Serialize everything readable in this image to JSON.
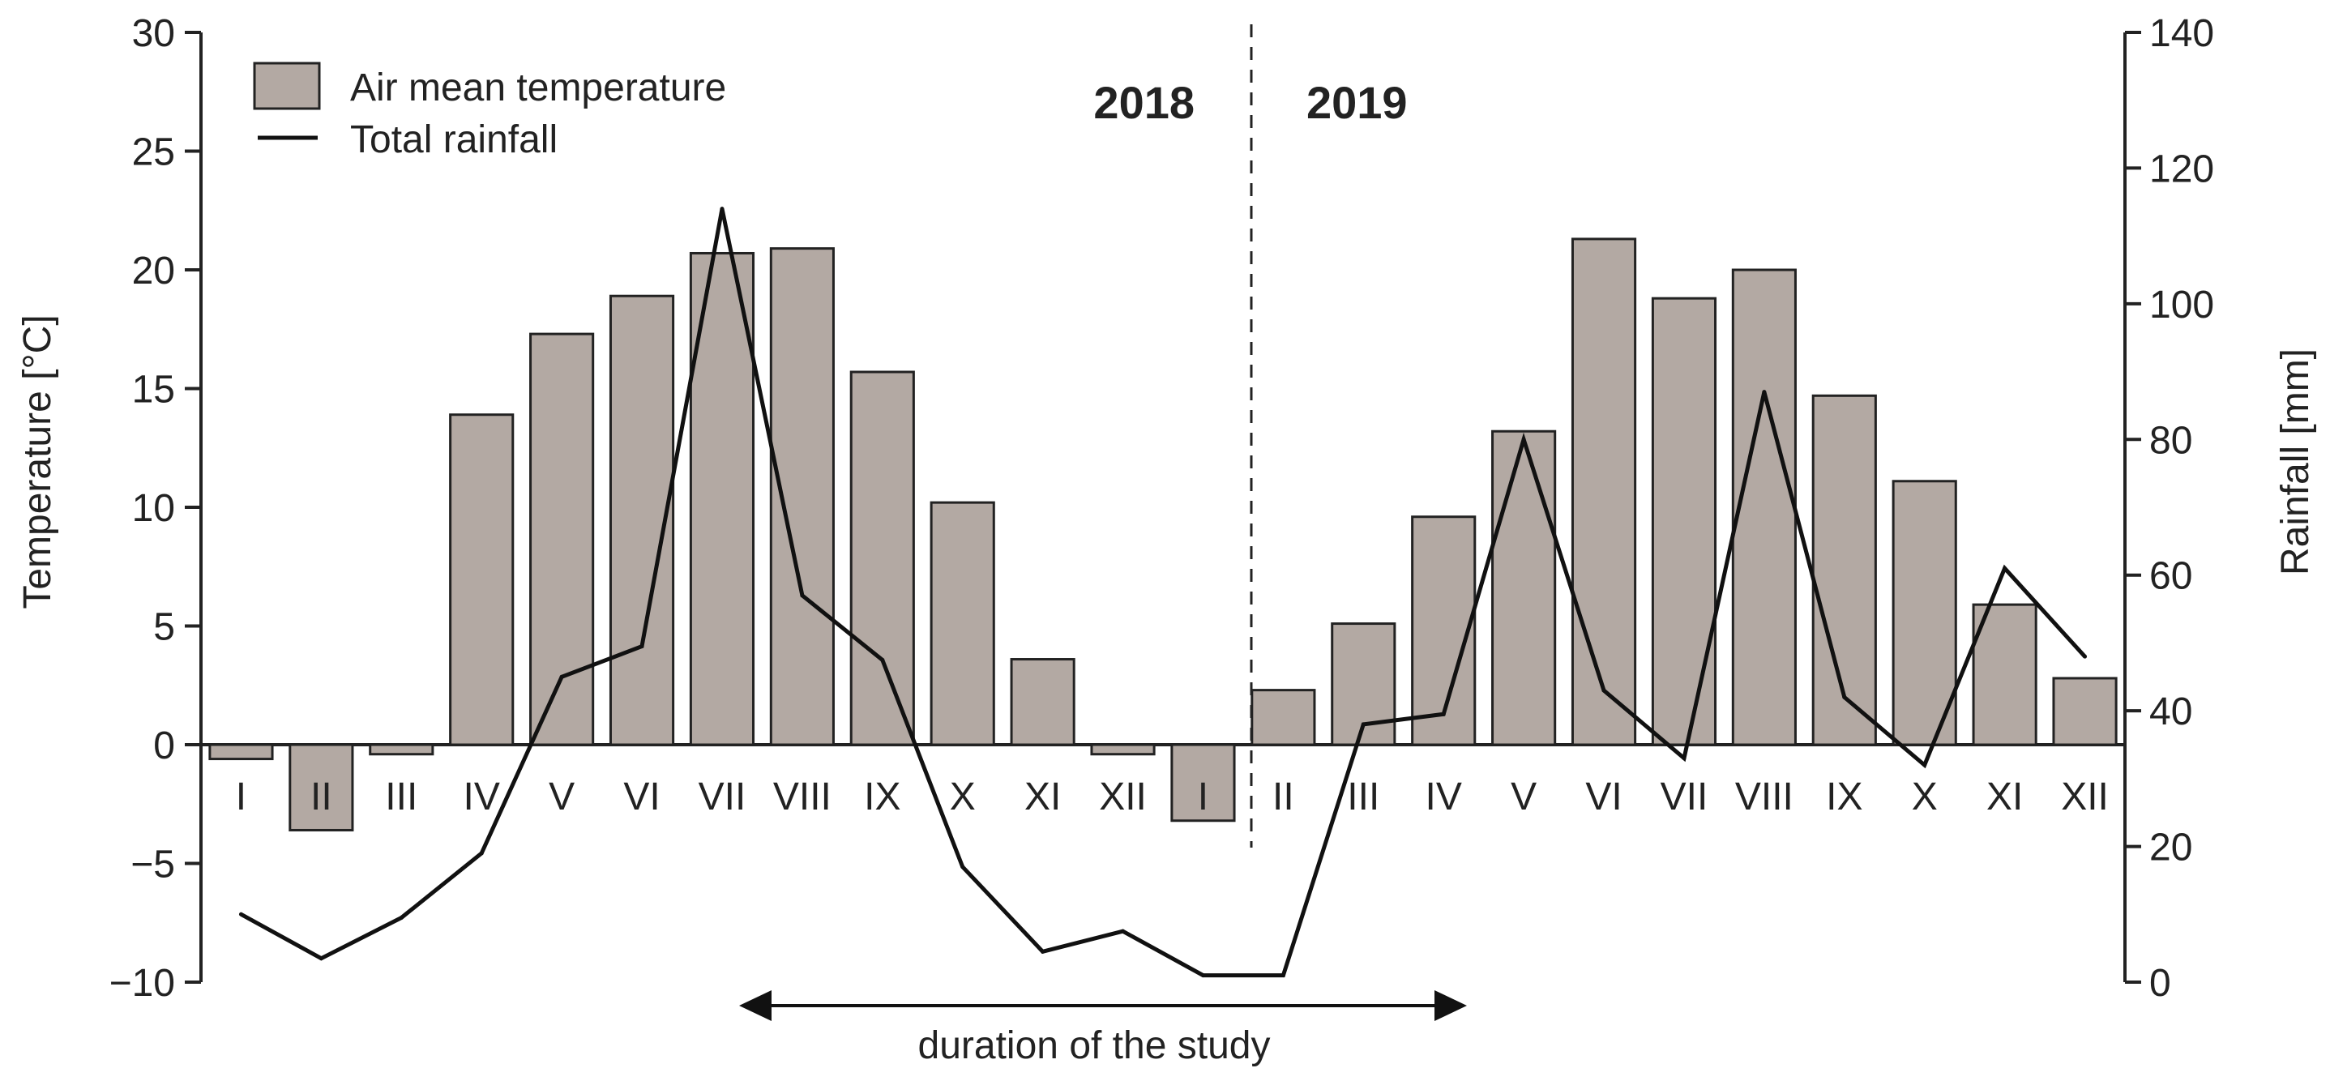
{
  "chart_data": {
    "type": "bar",
    "secondary_type": "line",
    "categories": [
      "I",
      "II",
      "III",
      "IV",
      "V",
      "VI",
      "VII",
      "VIII",
      "IX",
      "X",
      "XI",
      "XII",
      "I",
      "II",
      "III",
      "IV",
      "V",
      "VI",
      "VII",
      "VIII",
      "IX",
      "X",
      "XI",
      "XII"
    ],
    "years": [
      {
        "label": "2018",
        "position": "left of divider"
      },
      {
        "label": "2019",
        "position": "right of divider"
      }
    ],
    "series": [
      {
        "name": "Air mean temperature",
        "kind": "bar",
        "axis": "left",
        "color": "#b3a9a3",
        "values": [
          -0.6,
          -3.6,
          -0.4,
          13.9,
          17.3,
          18.9,
          20.7,
          20.9,
          15.7,
          10.2,
          3.6,
          -0.4,
          -3.2,
          2.3,
          5.1,
          9.6,
          13.2,
          21.3,
          18.8,
          20.0,
          14.7,
          11.1,
          5.9,
          2.8
        ]
      },
      {
        "name": "Total rainfall",
        "kind": "line",
        "axis": "right",
        "color": "#111111",
        "values": [
          10,
          3.5,
          9.5,
          19,
          45,
          49.5,
          114,
          57,
          47.5,
          17,
          4.5,
          7.5,
          1,
          1,
          38,
          39.5,
          80,
          43,
          33,
          87,
          42,
          32,
          61,
          48
        ]
      }
    ],
    "xlabel": "",
    "ylabel": "Temperature [°C]",
    "y2label": "Rainfall [mm]",
    "ylim": [
      -10,
      30
    ],
    "yticks": [
      -10,
      -5,
      0,
      5,
      10,
      15,
      20,
      25,
      30
    ],
    "ytick_labels": [
      "−10",
      "−5",
      "0",
      "5",
      "10",
      "15",
      "20",
      "25",
      "30"
    ],
    "y2lim": [
      0,
      140
    ],
    "y2ticks": [
      0,
      20,
      40,
      60,
      80,
      100,
      120,
      140
    ],
    "y2tick_labels": [
      "0",
      "20",
      "40",
      "60",
      "80",
      "100",
      "120",
      "140"
    ],
    "legend": {
      "placement": "top-left",
      "entries": [
        "Air mean temperature",
        "Total rainfall"
      ]
    },
    "annotations": {
      "study_period_label": "duration of the study",
      "study_period_from": "VII 2018",
      "study_period_to": "IV 2019",
      "year_divider_between": "I 2019 / II 2019"
    },
    "grid": false
  }
}
